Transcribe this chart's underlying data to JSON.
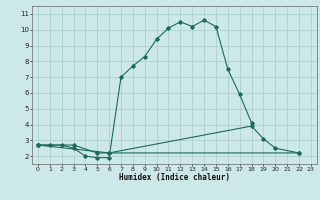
{
  "xlabel": "Humidex (Indice chaleur)",
  "bg_color": "#cce8e8",
  "grid_color": "#aacccc",
  "line_color": "#1a6b5a",
  "xlim": [
    -0.5,
    23.5
  ],
  "ylim": [
    1.5,
    11.5
  ],
  "xticks": [
    0,
    1,
    2,
    3,
    4,
    5,
    6,
    7,
    8,
    9,
    10,
    11,
    12,
    13,
    14,
    15,
    16,
    17,
    18,
    19,
    20,
    21,
    22,
    23
  ],
  "yticks": [
    2,
    3,
    4,
    5,
    6,
    7,
    8,
    9,
    10,
    11
  ],
  "curve1_x": [
    0,
    1,
    2,
    3,
    4,
    5,
    6,
    7,
    8,
    9,
    10,
    11,
    12,
    13,
    14,
    15,
    16,
    17,
    18
  ],
  "curve1_y": [
    2.7,
    2.7,
    2.7,
    2.5,
    2.0,
    1.9,
    1.9,
    7.0,
    7.7,
    8.3,
    9.4,
    10.1,
    10.5,
    10.2,
    10.6,
    10.2,
    7.5,
    5.9,
    4.1
  ],
  "curve2_x": [
    0,
    3,
    5,
    6,
    18,
    19,
    20,
    22
  ],
  "curve2_y": [
    2.7,
    2.7,
    2.2,
    2.2,
    3.9,
    3.1,
    2.5,
    2.2
  ],
  "curve3_x": [
    0,
    6,
    22
  ],
  "curve3_y": [
    2.7,
    2.2,
    2.2
  ]
}
